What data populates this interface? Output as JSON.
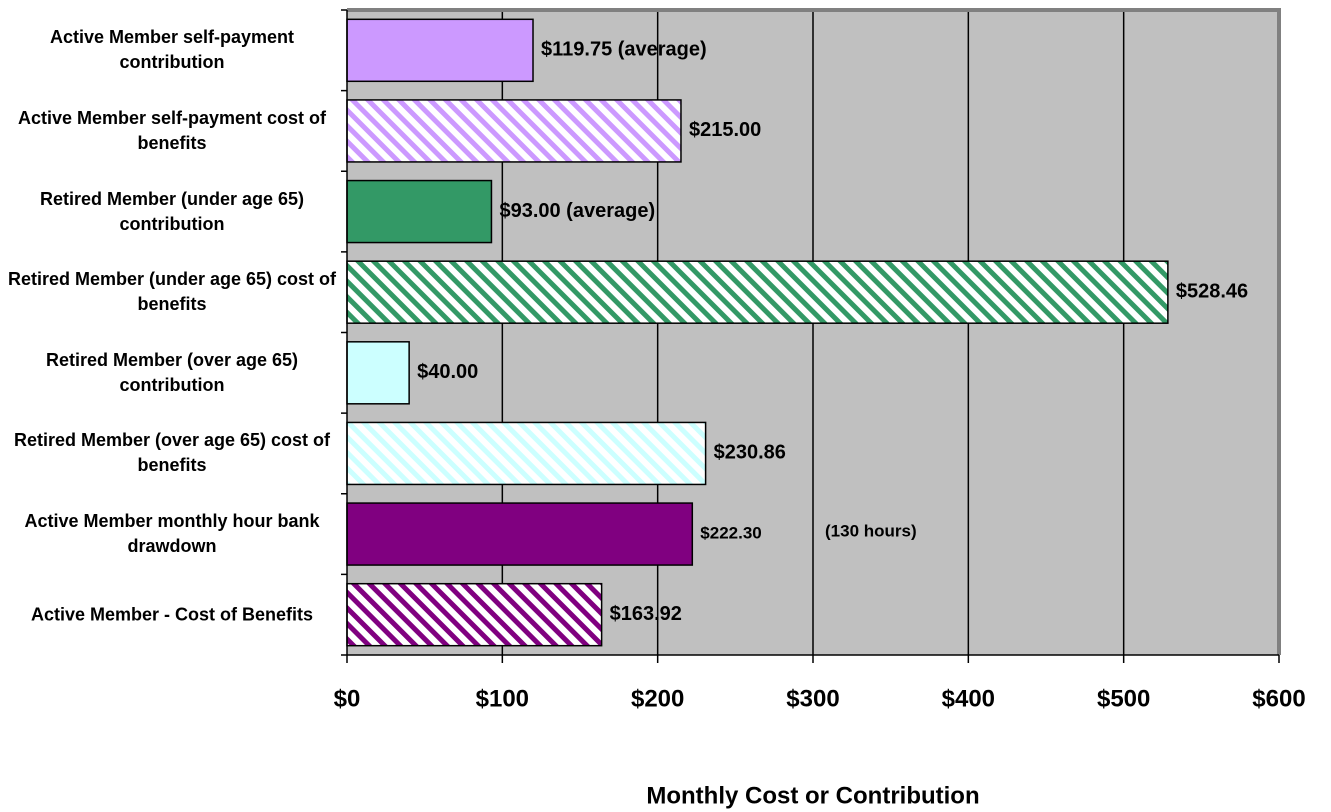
{
  "chart_data": {
    "type": "hbar",
    "categories": [
      "Active Member self-payment contribution",
      "Active Member self-payment cost of benefits",
      "Retired Member (under age 65) contribution",
      "Retired Member (under age 65) cost of benefits",
      "Retired Member (over age 65) contribution",
      "Retired Member (over age 65) cost of benefits",
      "Active Member monthly hour bank drawdown",
      "Active Member - Cost of Benefits"
    ],
    "values": [
      119.75,
      215,
      93,
      528.46,
      40,
      230.86,
      222.3,
      163.92
    ],
    "value_labels": [
      "$119.75 (average)",
      "$215.00",
      "$93.00 (average)",
      "$528.46",
      "$40.00",
      "$230.86",
      "$222.30",
      "$163.92"
    ],
    "colors": [
      "#cc99ff",
      "#cc99ff",
      "#339966",
      "#339966",
      "#ccffff",
      "#ccffff",
      "#800080",
      "#800080"
    ],
    "hatched": [
      false,
      true,
      false,
      true,
      false,
      true,
      false,
      true
    ],
    "annotation": "(130 hours)",
    "xlabel": "Monthly Cost or Contribution",
    "xlim": [
      0,
      600
    ],
    "xticks": [
      {
        "value": 0,
        "label": "$0"
      },
      {
        "value": 100,
        "label": "$100"
      },
      {
        "value": 200,
        "label": "$200"
      },
      {
        "value": 300,
        "label": "$300"
      },
      {
        "value": 400,
        "label": "$400"
      },
      {
        "value": 500,
        "label": "$500"
      },
      {
        "value": 600,
        "label": "$600"
      }
    ],
    "grid": true
  }
}
